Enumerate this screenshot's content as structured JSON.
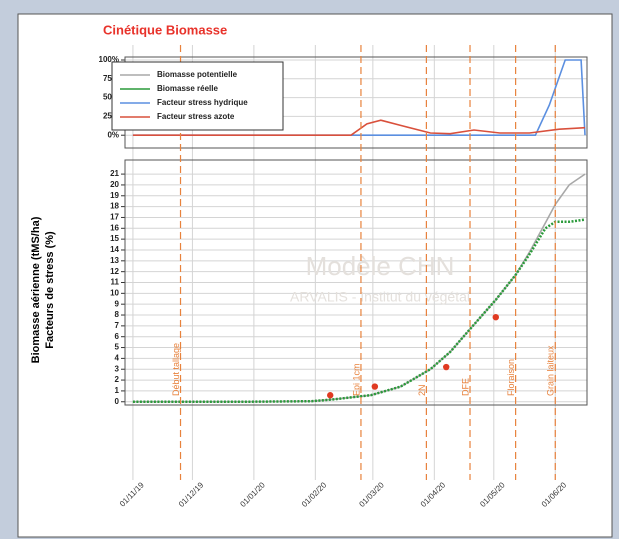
{
  "title": "Cinétique Biomasse",
  "y_axis_label": [
    "Biomasse aérienne (tMS/ha)",
    "Facteurs de stress (%)"
  ],
  "chart_data": [
    {
      "type": "line",
      "ylim": [
        -17,
        104
      ],
      "yticks": [
        {
          "value": 0,
          "label": "0%"
        },
        {
          "value": 25,
          "label": "25%"
        },
        {
          "value": 50,
          "label": "50%"
        },
        {
          "value": 75,
          "label": "75%"
        },
        {
          "value": 100,
          "label": "100%"
        }
      ],
      "xlim": [
        -4,
        229
      ],
      "series": [
        {
          "name": "Facteur stress hydrique",
          "color": "#5b8fe0",
          "x": [
            0,
            100,
            203,
            210,
            218,
            226,
            228
          ],
          "values": [
            0,
            0,
            0,
            40,
            100,
            100,
            0
          ]
        },
        {
          "name": "Facteur stress azote",
          "color": "#d9503c",
          "x": [
            0,
            110,
            118,
            125,
            135,
            150,
            160,
            172,
            185,
            200,
            215,
            228
          ],
          "values": [
            0,
            0,
            15,
            20,
            13,
            3,
            2,
            7,
            3,
            3,
            8,
            10
          ]
        }
      ]
    },
    {
      "type": "line",
      "ylim": [
        -0.3,
        22.3
      ],
      "yticks": [
        0,
        1,
        2,
        3,
        4,
        5,
        6,
        7,
        8,
        9,
        10,
        11,
        12,
        13,
        14,
        15,
        16,
        17,
        18,
        19,
        20,
        21
      ],
      "xlim": [
        -4,
        229
      ],
      "xticks": [
        {
          "value": 0,
          "label": "01/11/19"
        },
        {
          "value": 30,
          "label": "01/12/19"
        },
        {
          "value": 61,
          "label": "01/01/20"
        },
        {
          "value": 92,
          "label": "01/02/20"
        },
        {
          "value": 121,
          "label": "01/03/20"
        },
        {
          "value": 152,
          "label": "01/04/20"
        },
        {
          "value": 182,
          "label": "01/05/20"
        },
        {
          "value": 213,
          "label": "01/06/20"
        }
      ],
      "series": [
        {
          "name": "Biomasse potentielle",
          "color": "#a8a8a8",
          "x": [
            0,
            30,
            60,
            90,
            100,
            110,
            120,
            135,
            150,
            160,
            170,
            183,
            193,
            200,
            208,
            213,
            220,
            228
          ],
          "values": [
            0,
            0,
            0,
            0.05,
            0.2,
            0.4,
            0.6,
            1.4,
            3.0,
            4.6,
            6.7,
            9.4,
            11.7,
            13.8,
            16.5,
            18.2,
            20.0,
            21.0
          ]
        },
        {
          "name": "Biomasse réelle",
          "color": "#2a9a3a",
          "x": [
            0,
            30,
            60,
            90,
            100,
            110,
            120,
            135,
            150,
            160,
            170,
            183,
            193,
            200,
            208,
            213,
            220,
            228
          ],
          "values": [
            0,
            0,
            0,
            0.05,
            0.2,
            0.4,
            0.6,
            1.4,
            3.0,
            4.6,
            6.7,
            9.4,
            11.7,
            13.6,
            16.0,
            16.6,
            16.6,
            16.8
          ]
        }
      ],
      "observations": {
        "color": "#e03a22",
        "x": [
          99.5,
          122,
          158,
          183
        ],
        "values": [
          0.6,
          1.4,
          3.2,
          7.8
        ]
      },
      "annotations": [
        {
          "x": 24,
          "label": "Début tallage"
        },
        {
          "x": 115,
          "label": "Epi 1cm"
        },
        {
          "x": 148,
          "label": "2N"
        },
        {
          "x": 170,
          "label": "DFE"
        },
        {
          "x": 193,
          "label": "Floraison"
        },
        {
          "x": 213,
          "label": "Grain laiteux"
        }
      ],
      "annotation_color": "#e8823c",
      "watermark": [
        "Modèle CHN",
        "ARVALIS - Institut du végétal"
      ]
    }
  ]
}
